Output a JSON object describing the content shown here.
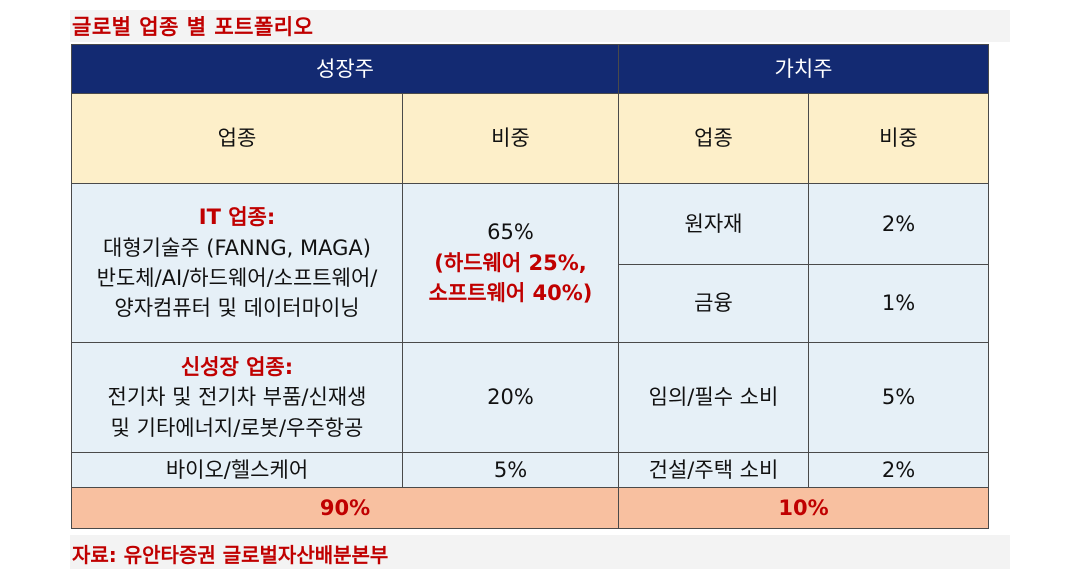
{
  "title": "글로벌 업종 별 포트폴리오",
  "source": "자료: 유안타증권 글로벌자산배분본부",
  "table": {
    "groups": {
      "growth": "성장주",
      "value": "가치주"
    },
    "col_headers": {
      "growth_sector": "업종",
      "growth_weight": "비중",
      "value_sector": "업종",
      "value_weight": "비중"
    },
    "growth_rows": [
      {
        "category": "IT 업종:",
        "lines": [
          "대형기술주 (FANNG, MAGA)",
          "반도체/AI/하드웨어/소프트웨어/",
          "양자컴퓨터 및 데이터마이닝"
        ],
        "weight": "65%",
        "weight_detail": [
          "(하드웨어 25%,",
          "소프트웨어 40%)"
        ]
      },
      {
        "category": "신성장 업종:",
        "lines": [
          "전기차 및 전기차 부품/신재생",
          "및 기타에너지/로봇/우주항공"
        ],
        "weight": "20%"
      },
      {
        "sector": "바이오/헬스케어",
        "weight": "5%"
      }
    ],
    "value_rows": [
      {
        "sector": "원자재",
        "weight": "2%"
      },
      {
        "sector": "금융",
        "weight": "1%"
      },
      {
        "sector": "임의/필수 소비",
        "weight": "5%"
      },
      {
        "sector": "건설/주택 소비",
        "weight": "2%"
      }
    ],
    "totals": {
      "growth": "90%",
      "value": "10%"
    }
  },
  "colors": {
    "header_navy": "#132a72",
    "col_header_cream": "#fdefc9",
    "body_light_blue": "#e6f0f7",
    "total_salmon": "#f8c0a0",
    "accent_red": "#c00000"
  }
}
